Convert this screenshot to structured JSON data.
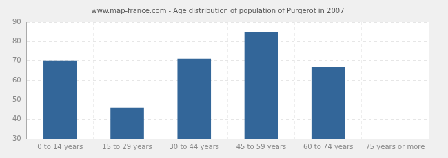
{
  "chart_data": {
    "type": "bar",
    "title": "www.map-france.com - Age distribution of population of Purgerot in 2007",
    "categories": [
      "0 to 14 years",
      "15 to 29 years",
      "30 to 44 years",
      "45 to 59 years",
      "60 to 74 years",
      "75 years or more"
    ],
    "values": [
      70,
      46,
      71,
      85,
      67,
      30
    ],
    "color": "#336699",
    "ylim": [
      30,
      90
    ],
    "yticks": [
      30,
      40,
      50,
      60,
      70,
      80,
      90
    ],
    "grid": true
  }
}
